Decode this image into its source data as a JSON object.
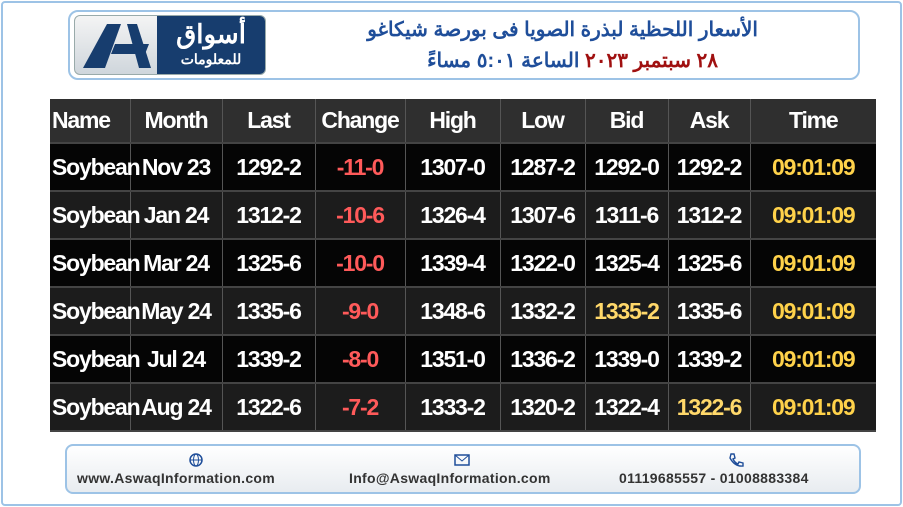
{
  "header": {
    "logo": {
      "name": "أسواق",
      "subtitle": "للمعلومات"
    },
    "title": "الأسعار اللحظية لبذرة الصويا فى بورصة شيكاغو",
    "date": "٢٨ سبتمبر ٢٠٢٣",
    "time": "الساعة ٥:٠١ مساءً"
  },
  "table": {
    "columns": [
      "Name",
      "Month",
      "Last",
      "Change",
      "High",
      "Low",
      "Bid",
      "Ask",
      "Time"
    ],
    "rows": [
      [
        "Soybean",
        "Nov 23",
        "1292-2",
        "-11-0",
        "1307-0",
        "1287-2",
        "1292-0",
        "1292-2",
        "09:01:09"
      ],
      [
        "Soybean",
        "Jan 24",
        "1312-2",
        "-10-6",
        "1326-4",
        "1307-6",
        "1311-6",
        "1312-2",
        "09:01:09"
      ],
      [
        "Soybean",
        "Mar 24",
        "1325-6",
        "-10-0",
        "1339-4",
        "1322-0",
        "1325-4",
        "1325-6",
        "09:01:09"
      ],
      [
        "Soybean",
        "May 24",
        "1335-6",
        "-9-0",
        "1348-6",
        "1332-2",
        "1335-2",
        "1335-6",
        "09:01:09"
      ],
      [
        "Soybean",
        "Jul 24",
        "1339-2",
        "-8-0",
        "1351-0",
        "1336-2",
        "1339-0",
        "1339-2",
        "09:01:09"
      ],
      [
        "Soybean",
        "Aug 24",
        "1322-6",
        "-7-2",
        "1333-2",
        "1320-2",
        "1322-4",
        "1322-6",
        "09:01:09"
      ]
    ]
  },
  "footer": {
    "website": "www.AswaqInformation.com",
    "email": "Info@AswaqInformation.com",
    "phone": "01119685557 - 01008883384"
  }
}
